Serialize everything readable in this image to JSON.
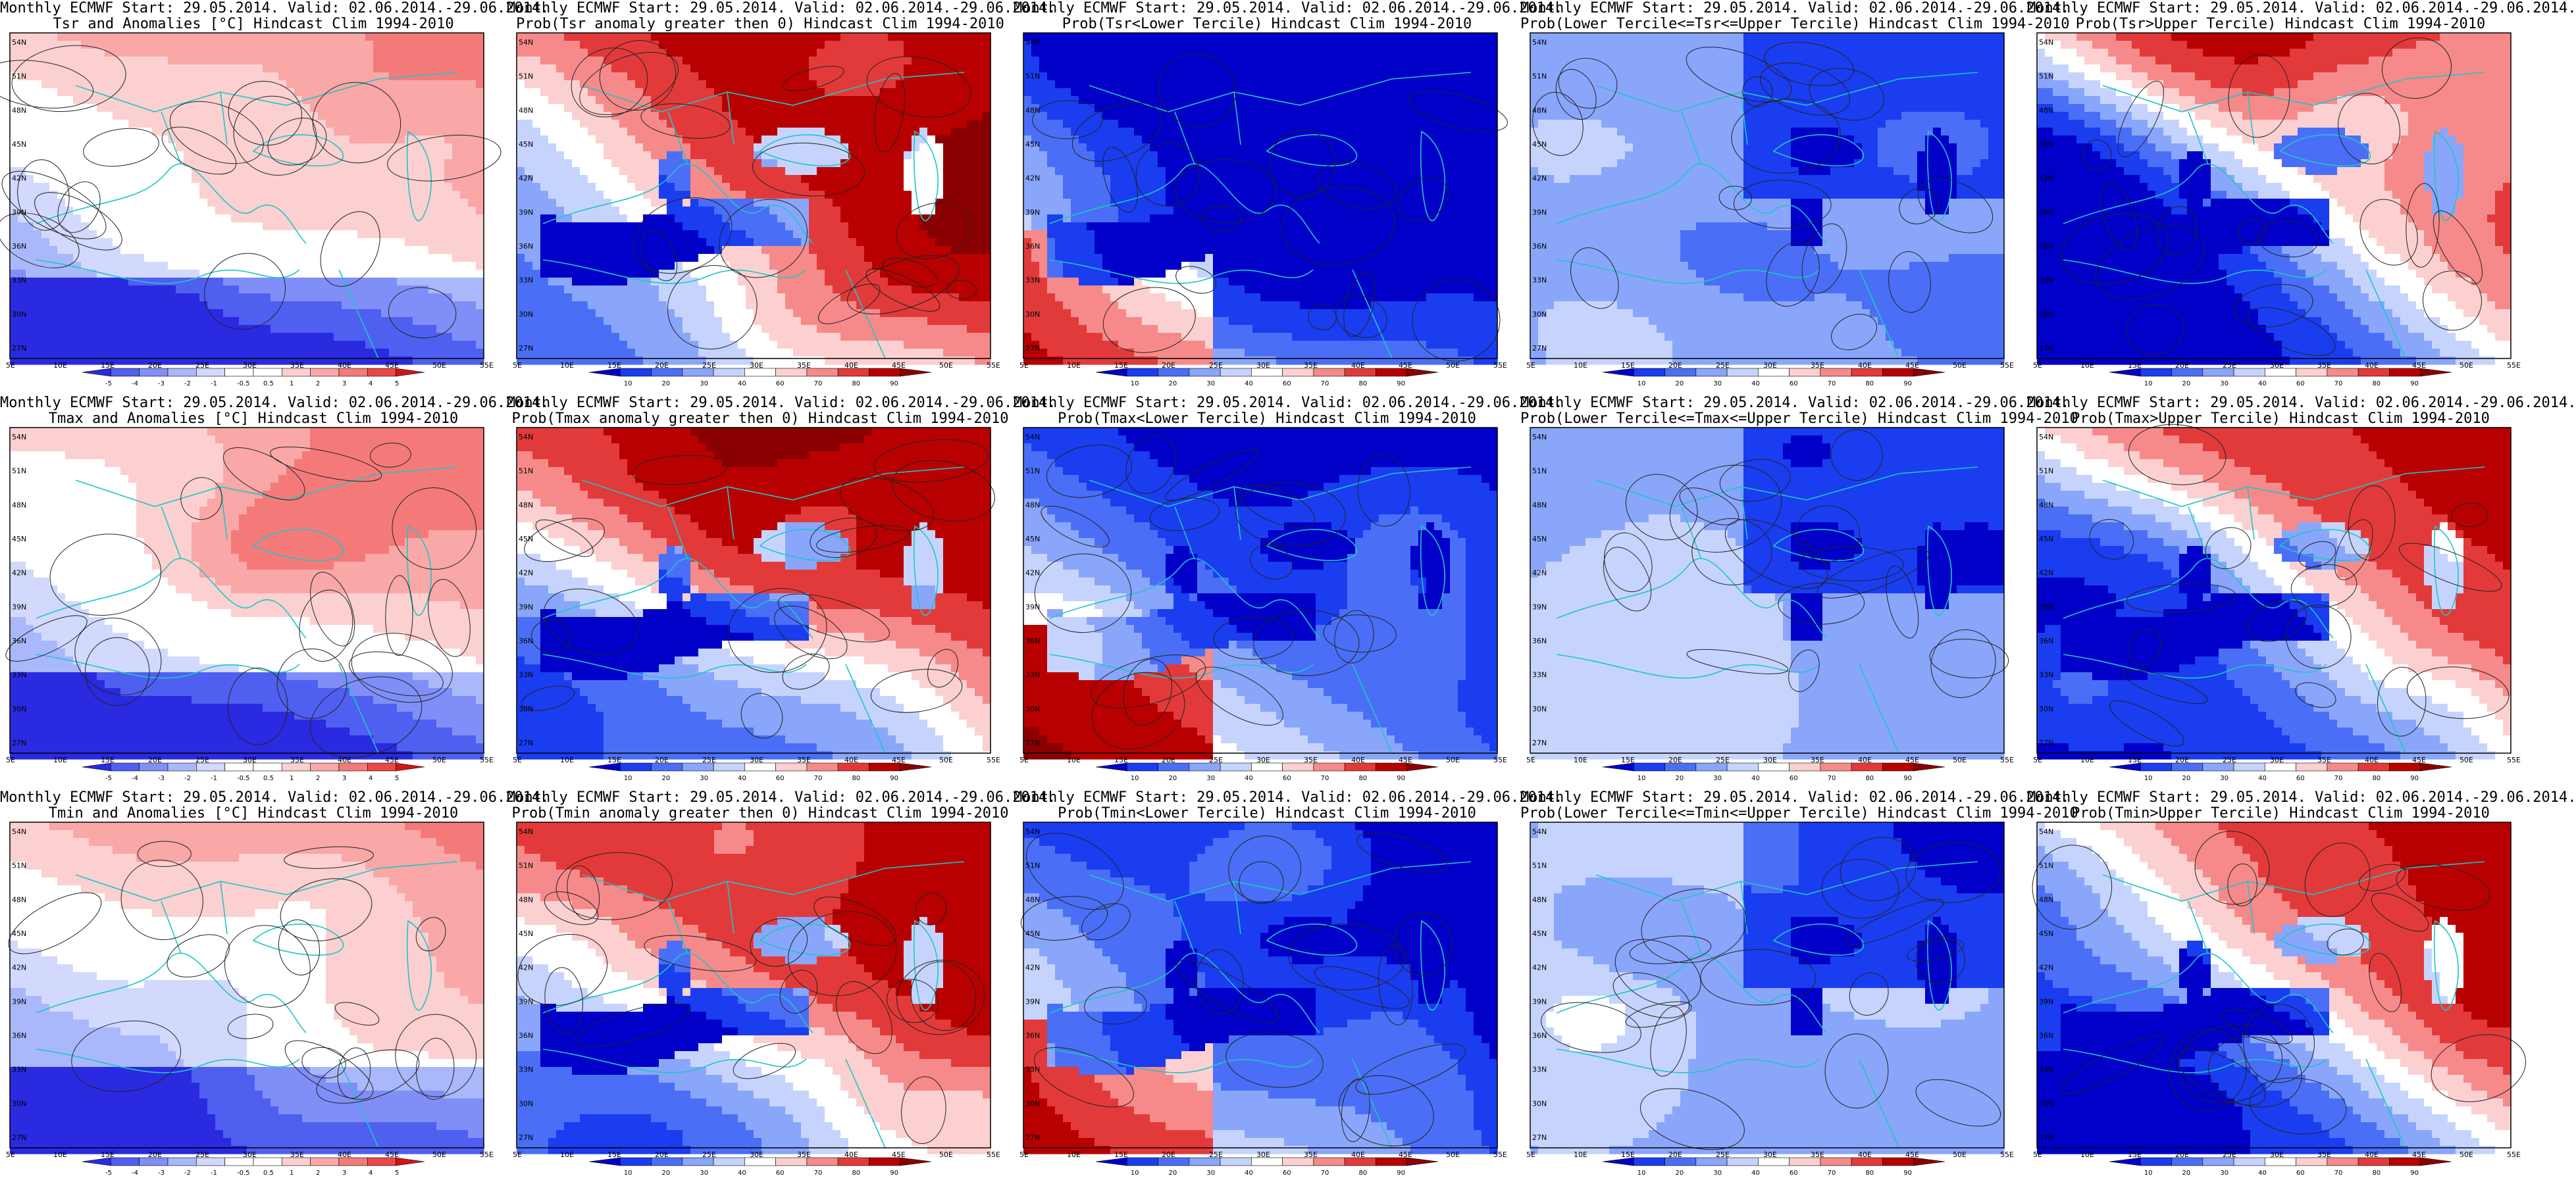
{
  "colors": {
    "anomaly": [
      "#2a2ae0",
      "#4f5ff0",
      "#7f8ff7",
      "#a9b8fb",
      "#d2d9fd",
      "#ffffff",
      "#ffffff",
      "#fcd0d0",
      "#f9a7a7",
      "#f47a7a",
      "#ea4848",
      "#d01515"
    ],
    "probability": [
      "#0000c8",
      "#1a3df0",
      "#4a6ff6",
      "#8aa6fb",
      "#c6d4fd",
      "#ffffff",
      "#fcd0d0",
      "#f68a8a",
      "#e23a3a",
      "#b80000",
      "#8a0000"
    ],
    "coast": "#1fc6c6",
    "contour": "#222222",
    "border": "#000000"
  },
  "axes": {
    "lat_labels": [
      "54N",
      "51N",
      "48N",
      "45N",
      "42N",
      "39N",
      "36N",
      "33N",
      "30N",
      "27N"
    ],
    "lon_labels": [
      "5E",
      "10E",
      "15E",
      "20E",
      "25E",
      "30E",
      "35E",
      "40E",
      "45E",
      "50E",
      "55E"
    ]
  },
  "colorbars": {
    "anomaly_ticks": [
      "-5",
      "-4",
      "-3",
      "-2",
      "-1",
      "-0.5",
      "0.5",
      "1",
      "2",
      "3",
      "4",
      "5"
    ],
    "probability_ticks": [
      "10",
      "20",
      "30",
      "40",
      "60",
      "70",
      "80",
      "90"
    ]
  },
  "panels": [
    {
      "id": "r1c1",
      "title1": "Monthly ECMWF Start: 29.05.2014. Valid: 02.06.2014.-29.06.2014.",
      "title2": "Tsr and Anomalies [°C] Hindcast Clim 1994-2010",
      "kind": "anomaly",
      "scheme": "anom",
      "seed": 11
    },
    {
      "id": "r1c2",
      "title1": "Monthly ECMWF Start: 29.05.2014. Valid: 02.06.2014.-29.06.2014.",
      "title2": "Prob(Tsr anomaly greater then 0) Hindcast Clim 1994-2010",
      "kind": "probability",
      "scheme": "warm",
      "seed": 12
    },
    {
      "id": "r1c3",
      "title1": "Monthly ECMWF Start: 29.05.2014. Valid: 02.06.2014.-29.06.2014.",
      "title2": "Prob(Tsr<Lower Tercile) Hindcast Clim 1994-2010",
      "kind": "probability",
      "scheme": "cold",
      "seed": 13
    },
    {
      "id": "r1c4",
      "title1": "Monthly ECMWF Start: 29.05.2014. Valid: 02.06.2014.-29.06.2014.",
      "title2": "Prob(Lower Tercile<=Tsr<=Upper Tercile) Hindcast Clim 1994-2010",
      "kind": "probability",
      "scheme": "middle",
      "seed": 14
    },
    {
      "id": "r1c5",
      "title1": "Monthly ECMWF Start: 29.05.2014. Valid: 02.06.2014.-29.06.2014.",
      "title2": "Prob(Tsr>Upper Tercile) Hindcast Clim 1994-2010",
      "kind": "probability",
      "scheme": "upper",
      "seed": 15
    },
    {
      "id": "r2c1",
      "title1": "Monthly ECMWF Start: 29.05.2014. Valid: 02.06.2014.-29.06.2014.",
      "title2": "Tmax and Anomalies [°C] Hindcast Clim 1994-2010",
      "kind": "anomaly",
      "scheme": "anom",
      "seed": 21
    },
    {
      "id": "r2c2",
      "title1": "Monthly ECMWF Start: 29.05.2014. Valid: 02.06.2014.-29.06.2014.",
      "title2": "Prob(Tmax anomaly greater then 0) Hindcast Clim 1994-2010",
      "kind": "probability",
      "scheme": "warm",
      "seed": 22
    },
    {
      "id": "r2c3",
      "title1": "Monthly ECMWF Start: 29.05.2014. Valid: 02.06.2014.-29.06.2014.",
      "title2": "Prob(Tmax<Lower Tercile) Hindcast Clim 1994-2010",
      "kind": "probability",
      "scheme": "cold",
      "seed": 23
    },
    {
      "id": "r2c4",
      "title1": "Monthly ECMWF Start: 29.05.2014. Valid: 02.06.2014.-29.06.2014.",
      "title2": "Prob(Lower Tercile<=Tmax<=Upper Tercile) Hindcast Clim 1994-2010",
      "kind": "probability",
      "scheme": "middle",
      "seed": 24
    },
    {
      "id": "r2c5",
      "title1": "Monthly ECMWF Start: 29.05.2014. Valid: 02.06.2014.-29.06.2014.",
      "title2": "Prob(Tmax>Upper Tercile) Hindcast Clim 1994-2010",
      "kind": "probability",
      "scheme": "upper",
      "seed": 25
    },
    {
      "id": "r3c1",
      "title1": "Monthly ECMWF Start: 29.05.2014. Valid: 02.06.2014.-29.06.2014.",
      "title2": "Tmin and Anomalies [°C] Hindcast Clim 1994-2010",
      "kind": "anomaly",
      "scheme": "anom",
      "seed": 31
    },
    {
      "id": "r3c2",
      "title1": "Monthly ECMWF Start: 29.05.2014. Valid: 02.06.2014.-29.06.2014.",
      "title2": "Prob(Tmin anomaly greater then 0) Hindcast Clim 1994-2010",
      "kind": "probability",
      "scheme": "warm",
      "seed": 32
    },
    {
      "id": "r3c3",
      "title1": "Monthly ECMWF Start: 29.05.2014. Valid: 02.06.2014.-29.06.2014.",
      "title2": "Prob(Tmin<Lower Tercile) Hindcast Clim 1994-2010",
      "kind": "probability",
      "scheme": "cold",
      "seed": 33
    },
    {
      "id": "r3c4",
      "title1": "Monthly ECMWF Start: 29.05.2014. Valid: 02.06.2014.-29.06.2014.",
      "title2": "Prob(Lower Tercile<=Tmin<=Upper Tercile) Hindcast Clim 1994-2010",
      "kind": "probability",
      "scheme": "middle",
      "seed": 34
    },
    {
      "id": "r3c5",
      "title1": "Monthly ECMWF Start: 29.05.2014. Valid: 02.06.2014.-29.06.2014.",
      "title2": "Prob(Tmin>Upper Tercile) Hindcast Clim 1994-2010",
      "kind": "probability",
      "scheme": "upper",
      "seed": 35
    }
  ]
}
